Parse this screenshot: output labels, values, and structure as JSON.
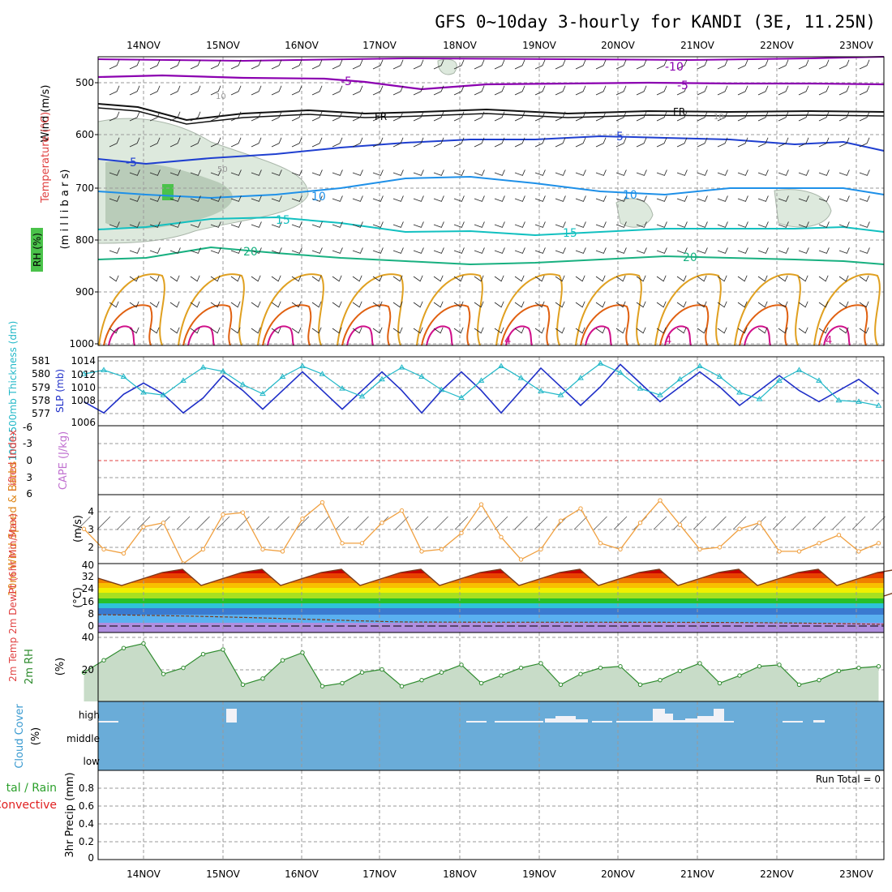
{
  "title": "GFS 0~10day 3-hourly for KANDI (3E, 11.25N)",
  "x_dates": [
    "14NOV",
    "15NOV",
    "16NOV",
    "17NOV",
    "18NOV",
    "19NOV",
    "20NOV",
    "21NOV",
    "22NOV",
    "23NOV"
  ],
  "colors": {
    "temp_purple": "#8b00b0",
    "freezing": "#000000",
    "temp_blue": "#1f3fd0",
    "temp_lightblue": "#1e90e8",
    "temp_cyan": "#12c0c0",
    "temp_green": "#18b080",
    "temp_orange": "#e0a020",
    "temp_darkorange": "#e06010",
    "temp_magenta": "#d0108a",
    "rh_shade": "#cfe3cf",
    "slp_line": "#1f2fc8",
    "thickness_line": "#22b8c8",
    "wind_line": "#f0a040",
    "cloud_bg": "#6aacd8",
    "rh2m": "#2e8b2e"
  },
  "panels": {
    "upper": {
      "labels": [
        "Wind (m/s)",
        "Temperature (°C)",
        "RH (%)",
        "(m i l l i b a r s)"
      ],
      "y_ticks": [
        "500",
        "600",
        "700",
        "800",
        "900",
        "1000"
      ],
      "contour_labels": [
        "-10",
        "-5",
        "-5",
        "FR",
        "FR",
        "-5",
        "5",
        "10",
        "10",
        "15",
        "15",
        "20",
        "20",
        "4",
        "4",
        "4",
        "10",
        "10",
        "50"
      ]
    },
    "thickness": {
      "left_label": "1000-500mb Thickness (dm)",
      "right_label": "SLP (mb)",
      "left_ticks": [
        "581",
        "580",
        "579",
        "578",
        "577"
      ],
      "right_ticks": [
        "1014",
        "1012",
        "1010",
        "1008",
        "1006"
      ]
    },
    "cape": {
      "left_label": "Lifted Index",
      "right_label": "CAPE (J/kg)",
      "ticks": [
        "-6",
        "-3",
        "0",
        "3",
        "6"
      ]
    },
    "wind10": {
      "label": "10m Wind Speed & Barbs",
      "unit": "(m/s)",
      "ticks": [
        "4",
        "3",
        "2"
      ]
    },
    "temp2m": {
      "label": "2m Temp 2m DewPt (6hr Min/Max)",
      "unit": "(°C)",
      "ticks": [
        "40",
        "32",
        "24",
        "16",
        "8",
        "0"
      ]
    },
    "rh2m": {
      "label": "2m RH",
      "unit": "(%)",
      "ticks": [
        "40",
        "20"
      ]
    },
    "cloud": {
      "label": "Cloud Cover",
      "unit": "(%)",
      "levels": [
        "high",
        "middle",
        "low"
      ]
    },
    "precip": {
      "label_total": "tal / Rain",
      "label_conv": "Convective",
      "unit": "3hr Precip (mm)",
      "ticks": [
        "0.8",
        "0.6",
        "0.4",
        "0.2",
        "0"
      ],
      "run_total": "Run Total = 0"
    }
  },
  "chart_data": [
    {
      "type": "line",
      "name": "thickness-slp",
      "x_unit": "forecast hour",
      "series": [
        {
          "name": "SLP (mb)",
          "x": [
            0,
            6,
            12,
            18,
            24,
            30,
            36,
            42,
            48,
            54,
            60,
            66,
            72,
            78,
            84,
            90,
            96,
            102,
            108,
            114,
            120,
            126,
            132,
            138,
            144,
            150,
            156,
            162,
            168,
            174,
            180,
            186,
            192,
            198,
            204,
            210,
            216,
            222,
            228,
            234,
            240
          ],
          "values": [
            1008.5,
            1007,
            1009.5,
            1011,
            1009.5,
            1007,
            1009,
            1012,
            1010,
            1007.5,
            1010,
            1012.5,
            1010,
            1007.5,
            1010,
            1012.5,
            1010,
            1007,
            1010,
            1012.5,
            1010,
            1007,
            1010,
            1013,
            1010.5,
            1008,
            1010.5,
            1013.5,
            1011,
            1008.5,
            1010.5,
            1012.5,
            1010.5,
            1008,
            1010,
            1012,
            1010,
            1008.5,
            1010,
            1011.5,
            1009.5
          ]
        },
        {
          "name": "1000-500mb Thickness (dm)",
          "x": [
            0,
            6,
            12,
            18,
            24,
            30,
            36,
            42,
            48,
            54,
            60,
            66,
            72,
            78,
            84,
            90,
            96,
            102,
            108,
            114,
            120,
            126,
            132,
            138,
            144,
            150,
            156,
            162,
            168,
            174,
            180,
            186,
            192,
            198,
            204,
            210,
            216,
            222,
            228,
            234,
            240
          ],
          "values": [
            580,
            580.3,
            579.8,
            578.6,
            578.4,
            579.5,
            580.5,
            580.2,
            579.2,
            578.5,
            579.8,
            580.6,
            580,
            578.9,
            578.3,
            579.6,
            580.5,
            579.8,
            578.8,
            578.2,
            579.5,
            580.6,
            579.7,
            578.7,
            578.4,
            579.7,
            580.8,
            580.1,
            578.9,
            578.4,
            579.6,
            580.6,
            579.8,
            578.6,
            578.1,
            579.5,
            580.3,
            579.5,
            578,
            577.9,
            577.6
          ]
        }
      ]
    },
    {
      "type": "line",
      "name": "10m-wind",
      "x": [
        0,
        6,
        12,
        18,
        24,
        30,
        36,
        42,
        48,
        54,
        60,
        66,
        72,
        78,
        84,
        90,
        96,
        102,
        108,
        114,
        120,
        126,
        132,
        138,
        144,
        150,
        156,
        162,
        168,
        174,
        180,
        186,
        192,
        198,
        204,
        210,
        216,
        222,
        228,
        234,
        240
      ],
      "values": [
        3.2,
        2.2,
        2.0,
        3.3,
        3.5,
        1.5,
        2.2,
        3.9,
        4.0,
        2.2,
        2.1,
        3.7,
        4.5,
        2.5,
        2.5,
        3.5,
        4.1,
        2.1,
        2.2,
        3.0,
        4.4,
        2.8,
        1.7,
        2.2,
        3.6,
        4.2,
        2.5,
        2.2,
        3.5,
        4.6,
        3.4,
        2.2,
        2.3,
        3.2,
        3.5,
        2.1,
        2.1,
        2.5,
        2.9,
        2.1,
        2.5
      ],
      "ylim": [
        1.5,
        4.8
      ]
    },
    {
      "type": "area",
      "name": "2m-rh",
      "x": [
        0,
        6,
        12,
        18,
        24,
        30,
        36,
        42,
        48,
        54,
        60,
        66,
        72,
        78,
        84,
        90,
        96,
        102,
        108,
        114,
        120,
        126,
        132,
        138,
        144,
        150,
        156,
        162,
        168,
        174,
        180,
        186,
        192,
        198,
        204,
        210,
        216,
        222,
        228,
        234,
        240
      ],
      "values": [
        19,
        27,
        35,
        38,
        18,
        22,
        31,
        34,
        11,
        15,
        27,
        32,
        10,
        12,
        19,
        21,
        10,
        14,
        19,
        24,
        12,
        17,
        22,
        25,
        11,
        18,
        22,
        23,
        11,
        14,
        20,
        25,
        12,
        17,
        23,
        24,
        11,
        14,
        20,
        22,
        23
      ],
      "ylim": [
        0,
        42
      ]
    }
  ]
}
